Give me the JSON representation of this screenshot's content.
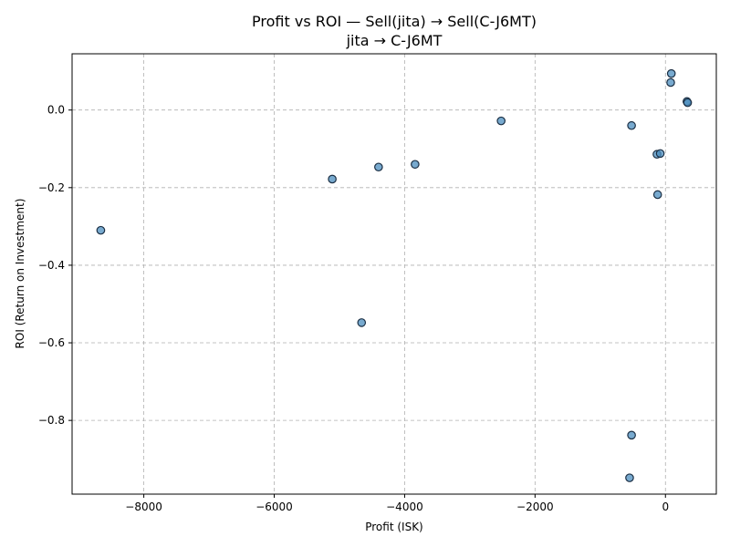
{
  "chart_data": {
    "type": "scatter",
    "title": "Profit vs ROI — Sell(jita) → Sell(C-J6MT)",
    "subtitle": "jita → C-J6MT",
    "xlabel": "Profit (ISK)",
    "ylabel": "ROI (Return on Investment)",
    "xlim": [
      -9100,
      780
    ],
    "ylim": [
      -0.99,
      0.145
    ],
    "xticks": [
      -8000,
      -6000,
      -4000,
      -2000,
      0
    ],
    "xtick_labels": [
      "−8000",
      "−6000",
      "−4000",
      "−2000",
      "0"
    ],
    "yticks": [
      -0.8,
      -0.6,
      -0.4,
      -0.2,
      0.0
    ],
    "ytick_labels": [
      "−0.8",
      "−0.6",
      "−0.4",
      "−0.2",
      "0.0"
    ],
    "grid": true,
    "color": "#4b8dbf",
    "points": [
      {
        "x": -8660,
        "y": -0.31
      },
      {
        "x": -5110,
        "y": -0.178
      },
      {
        "x": -4660,
        "y": -0.548
      },
      {
        "x": -4400,
        "y": -0.147
      },
      {
        "x": -3840,
        "y": -0.14
      },
      {
        "x": -2520,
        "y": -0.028
      },
      {
        "x": -520,
        "y": -0.04
      },
      {
        "x": -520,
        "y": -0.838
      },
      {
        "x": -550,
        "y": -0.948
      },
      {
        "x": -130,
        "y": -0.114
      },
      {
        "x": -80,
        "y": -0.112
      },
      {
        "x": -120,
        "y": -0.218
      },
      {
        "x": 90,
        "y": 0.094
      },
      {
        "x": 80,
        "y": 0.071
      },
      {
        "x": 330,
        "y": 0.022
      },
      {
        "x": 340,
        "y": 0.019
      }
    ]
  }
}
